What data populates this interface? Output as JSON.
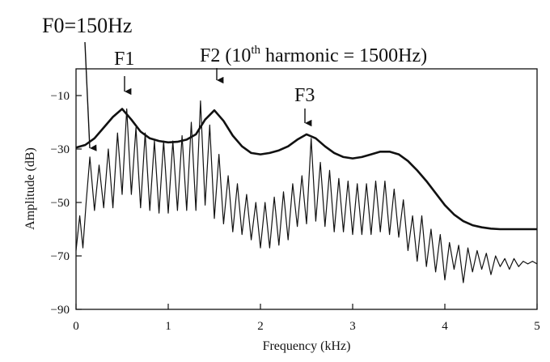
{
  "annotations": {
    "f0": "F0=150Hz",
    "f1": "F1",
    "f2_prefix": "F2 (10",
    "f2_sup": "th",
    "f2_suffix": " harmonic = 1500Hz)",
    "f3": "F3"
  },
  "chart_data": {
    "type": "line",
    "title": "",
    "xlabel": "Frequency (kHz)",
    "ylabel": "Amplitude (dB)",
    "xlim": [
      0,
      5
    ],
    "ylim": [
      -90,
      0
    ],
    "xticks": [
      0,
      1,
      2,
      3,
      4,
      5
    ],
    "xtick_labels": [
      "0",
      "1",
      "2",
      "3",
      "4",
      "5"
    ],
    "yticks": [
      -90,
      -70,
      -50,
      -30,
      -10
    ],
    "ytick_labels": [
      "−90",
      "−70",
      "−50",
      "−30",
      "−10"
    ],
    "grid": false,
    "harmonic_spacing_khz": 0.15,
    "formant_peaks_khz": {
      "F1": 0.5,
      "F2": 1.5,
      "F3": 2.5
    },
    "series": [
      {
        "role": "envelope",
        "x": [
          0.0,
          0.1,
          0.2,
          0.3,
          0.4,
          0.5,
          0.6,
          0.7,
          0.8,
          0.9,
          1.0,
          1.1,
          1.2,
          1.3,
          1.4,
          1.5,
          1.6,
          1.7,
          1.8,
          1.9,
          2.0,
          2.1,
          2.2,
          2.3,
          2.4,
          2.5,
          2.6,
          2.7,
          2.8,
          2.9,
          3.0,
          3.1,
          3.2,
          3.3,
          3.4,
          3.5,
          3.6,
          3.7,
          3.8,
          3.9,
          4.0,
          4.1,
          4.2,
          4.3,
          4.4,
          4.5,
          4.6,
          4.7,
          4.8,
          4.9,
          5.0
        ],
        "y": [
          -29.5,
          -28.5,
          -26,
          -22,
          -18,
          -15,
          -19,
          -23.5,
          -26,
          -27,
          -27.5,
          -27.3,
          -26.5,
          -24.5,
          -19,
          -15.5,
          -19.5,
          -25,
          -29,
          -31.5,
          -32,
          -31.5,
          -30.5,
          -29,
          -26.5,
          -24.5,
          -26,
          -29,
          -31.5,
          -33,
          -33.5,
          -33,
          -32,
          -31,
          -31,
          -32,
          -34.5,
          -38,
          -42,
          -46.5,
          -51,
          -54.5,
          -57,
          -58.5,
          -59.3,
          -59.8,
          -60,
          -60,
          -60,
          -60,
          -60
        ]
      },
      {
        "role": "harmonic_spectrum",
        "x": [
          0.0,
          0.04,
          0.075,
          0.11,
          0.15,
          0.2,
          0.25,
          0.3,
          0.35,
          0.4,
          0.45,
          0.5,
          0.55,
          0.6,
          0.65,
          0.7,
          0.75,
          0.8,
          0.85,
          0.9,
          0.95,
          1.0,
          1.05,
          1.1,
          1.15,
          1.2,
          1.25,
          1.3,
          1.35,
          1.4,
          1.45,
          1.5,
          1.55,
          1.6,
          1.65,
          1.7,
          1.75,
          1.8,
          1.85,
          1.9,
          1.95,
          2.0,
          2.05,
          2.1,
          2.15,
          2.2,
          2.25,
          2.3,
          2.35,
          2.4,
          2.45,
          2.5,
          2.55,
          2.6,
          2.65,
          2.7,
          2.75,
          2.8,
          2.85,
          2.9,
          2.95,
          3.0,
          3.05,
          3.1,
          3.15,
          3.2,
          3.25,
          3.3,
          3.35,
          3.4,
          3.45,
          3.5,
          3.55,
          3.6,
          3.65,
          3.7,
          3.75,
          3.8,
          3.85,
          3.9,
          3.95,
          4.0,
          4.05,
          4.1,
          4.15,
          4.2,
          4.25,
          4.3,
          4.35,
          4.4,
          4.45,
          4.5,
          4.55,
          4.6,
          4.65,
          4.7,
          4.75,
          4.8,
          4.85,
          4.9,
          4.95,
          5.0
        ],
        "y": [
          -68,
          -55,
          -67,
          -50,
          -33,
          -53,
          -36,
          -52,
          -30,
          -52,
          -24,
          -47,
          -15,
          -47,
          -22,
          -52,
          -24,
          -53,
          -27,
          -54,
          -27,
          -54,
          -27,
          -53,
          -25,
          -53,
          -20,
          -53,
          -12,
          -51,
          -21,
          -56,
          -32,
          -58,
          -40,
          -61,
          -43,
          -62,
          -47,
          -64,
          -50,
          -67,
          -50,
          -67,
          -48,
          -66,
          -46,
          -64,
          -43,
          -59,
          -40,
          -58,
          -26,
          -57,
          -35,
          -59,
          -38,
          -61,
          -41,
          -61,
          -42,
          -62,
          -43,
          -62,
          -43,
          -62,
          -42,
          -61,
          -42,
          -62,
          -45,
          -63,
          -49,
          -68,
          -55,
          -72,
          -55,
          -74,
          -60,
          -76,
          -62,
          -79,
          -65,
          -75,
          -66,
          -80,
          -67,
          -76,
          -68,
          -75,
          -69,
          -77,
          -70,
          -74,
          -71,
          -75,
          -71,
          -74,
          -72,
          -73,
          -72,
          -73
        ]
      }
    ]
  }
}
